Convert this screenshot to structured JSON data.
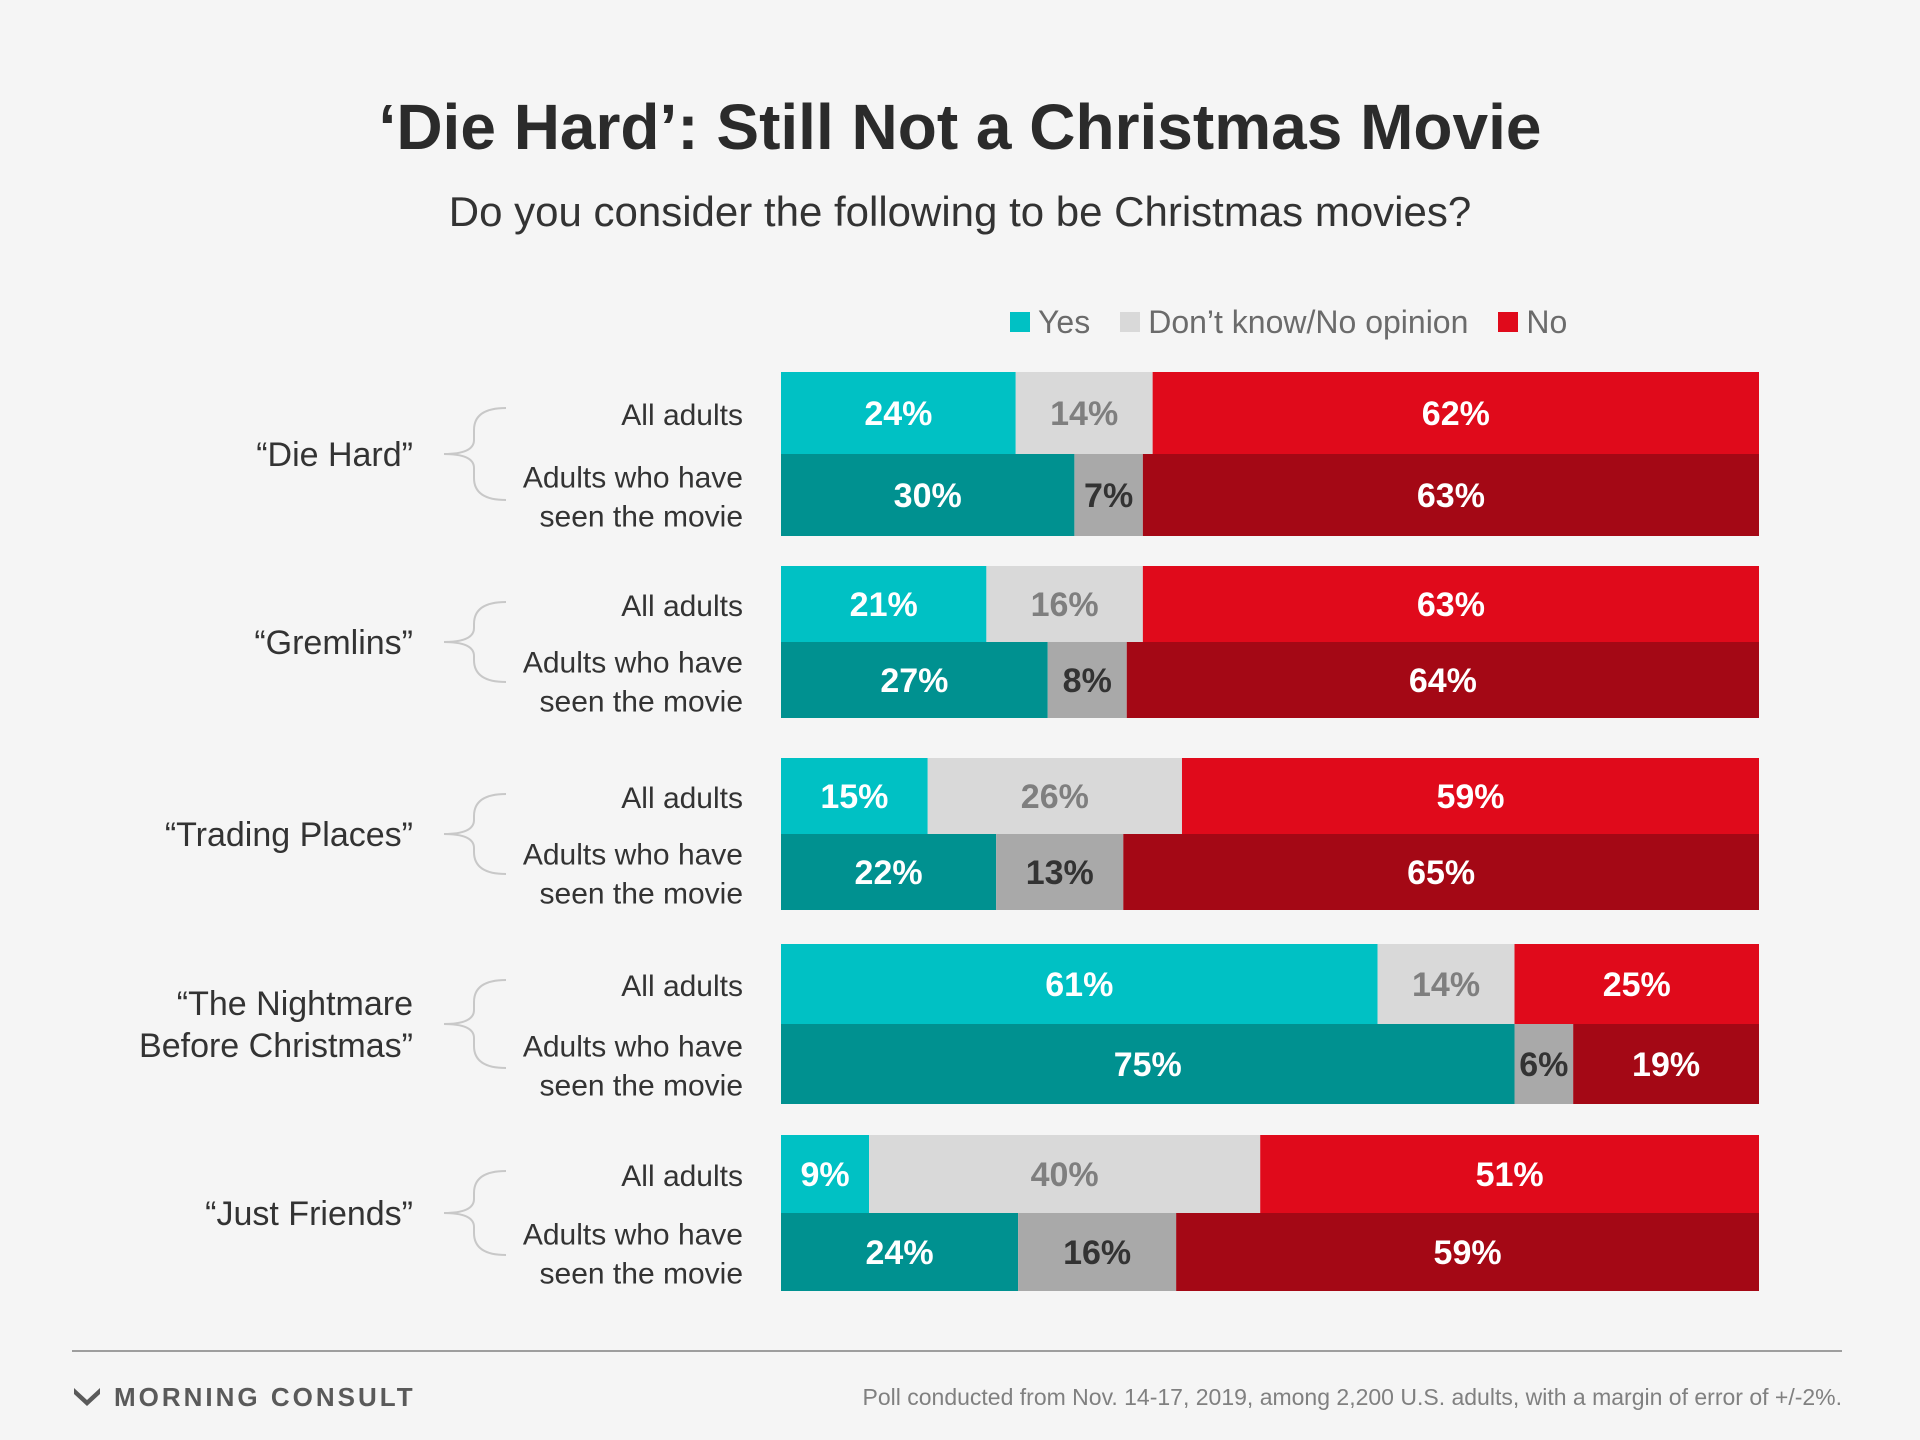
{
  "header": {
    "title": "‘Die Hard’: Still Not a Christmas Movie",
    "subtitle": "Do you consider the following to be Christmas movies?"
  },
  "legend": [
    {
      "label": "Yes",
      "color": "#00c1c4"
    },
    {
      "label": "Don’t know/No opinion",
      "color": "#d9d9d9"
    },
    {
      "label": "No",
      "color": "#e00a1b"
    }
  ],
  "chart_data": {
    "type": "bar",
    "orientation": "horizontal",
    "stacked": true,
    "percent_suffix": "%",
    "xlim": [
      0,
      100
    ],
    "grid": false,
    "legend_position": "top-right",
    "series_names": [
      "Yes",
      "Don’t know/No opinion",
      "No"
    ],
    "colors": {
      "all_adults": [
        "#00c1c4",
        "#d9d9d9",
        "#e00a1b"
      ],
      "seen": [
        "#009190",
        "#a9a9a9",
        "#a40815"
      ],
      "all_adults_text": [
        "#ffffff",
        "#7f7f7f",
        "#ffffff"
      ],
      "seen_text": [
        "#ffffff",
        "#333333",
        "#ffffff"
      ]
    },
    "movies": [
      {
        "title": "“Die Hard”",
        "title_lines": [
          "“Die Hard”"
        ],
        "rows": [
          {
            "group": "All adults",
            "group_lines": [
              "All adults"
            ],
            "values": [
              24,
              14,
              62
            ]
          },
          {
            "group": "Adults who have seen the movie",
            "group_lines": [
              "Adults who have",
              "seen the movie"
            ],
            "values": [
              30,
              7,
              63
            ]
          }
        ]
      },
      {
        "title": "“Gremlins”",
        "title_lines": [
          "“Gremlins”"
        ],
        "rows": [
          {
            "group": "All adults",
            "group_lines": [
              "All adults"
            ],
            "values": [
              21,
              16,
              63
            ]
          },
          {
            "group": "Adults who have seen the movie",
            "group_lines": [
              "Adults who have",
              "seen the movie"
            ],
            "values": [
              27,
              8,
              64
            ]
          }
        ]
      },
      {
        "title": "“Trading Places”",
        "title_lines": [
          "“Trading Places”"
        ],
        "rows": [
          {
            "group": "All adults",
            "group_lines": [
              "All adults"
            ],
            "values": [
              15,
              26,
              59
            ]
          },
          {
            "group": "Adults who have seen the movie",
            "group_lines": [
              "Adults who have",
              "seen the movie"
            ],
            "values": [
              22,
              13,
              65
            ]
          }
        ]
      },
      {
        "title": "“The Nightmare Before Christmas”",
        "title_lines": [
          "“The Nightmare",
          "Before Christmas”"
        ],
        "rows": [
          {
            "group": "All adults",
            "group_lines": [
              "All adults"
            ],
            "values": [
              61,
              14,
              25
            ]
          },
          {
            "group": "Adults who have seen the movie",
            "group_lines": [
              "Adults who have",
              "seen the movie"
            ],
            "values": [
              75,
              6,
              19
            ]
          }
        ]
      },
      {
        "title": "“Just Friends”",
        "title_lines": [
          "“Just Friends”"
        ],
        "rows": [
          {
            "group": "All adults",
            "group_lines": [
              "All adults"
            ],
            "values": [
              9,
              40,
              51
            ]
          },
          {
            "group": "Adults who have seen the movie",
            "group_lines": [
              "Adults who have",
              "seen the movie"
            ],
            "values": [
              24,
              16,
              59
            ]
          }
        ]
      }
    ]
  },
  "footer": {
    "logo_text": "MORNING CONSULT",
    "logo_icon": "morning-consult-logo-icon",
    "note": "Poll conducted from Nov. 14-17, 2019, among 2,200 U.S. adults, with a margin of error of +/-2%."
  }
}
